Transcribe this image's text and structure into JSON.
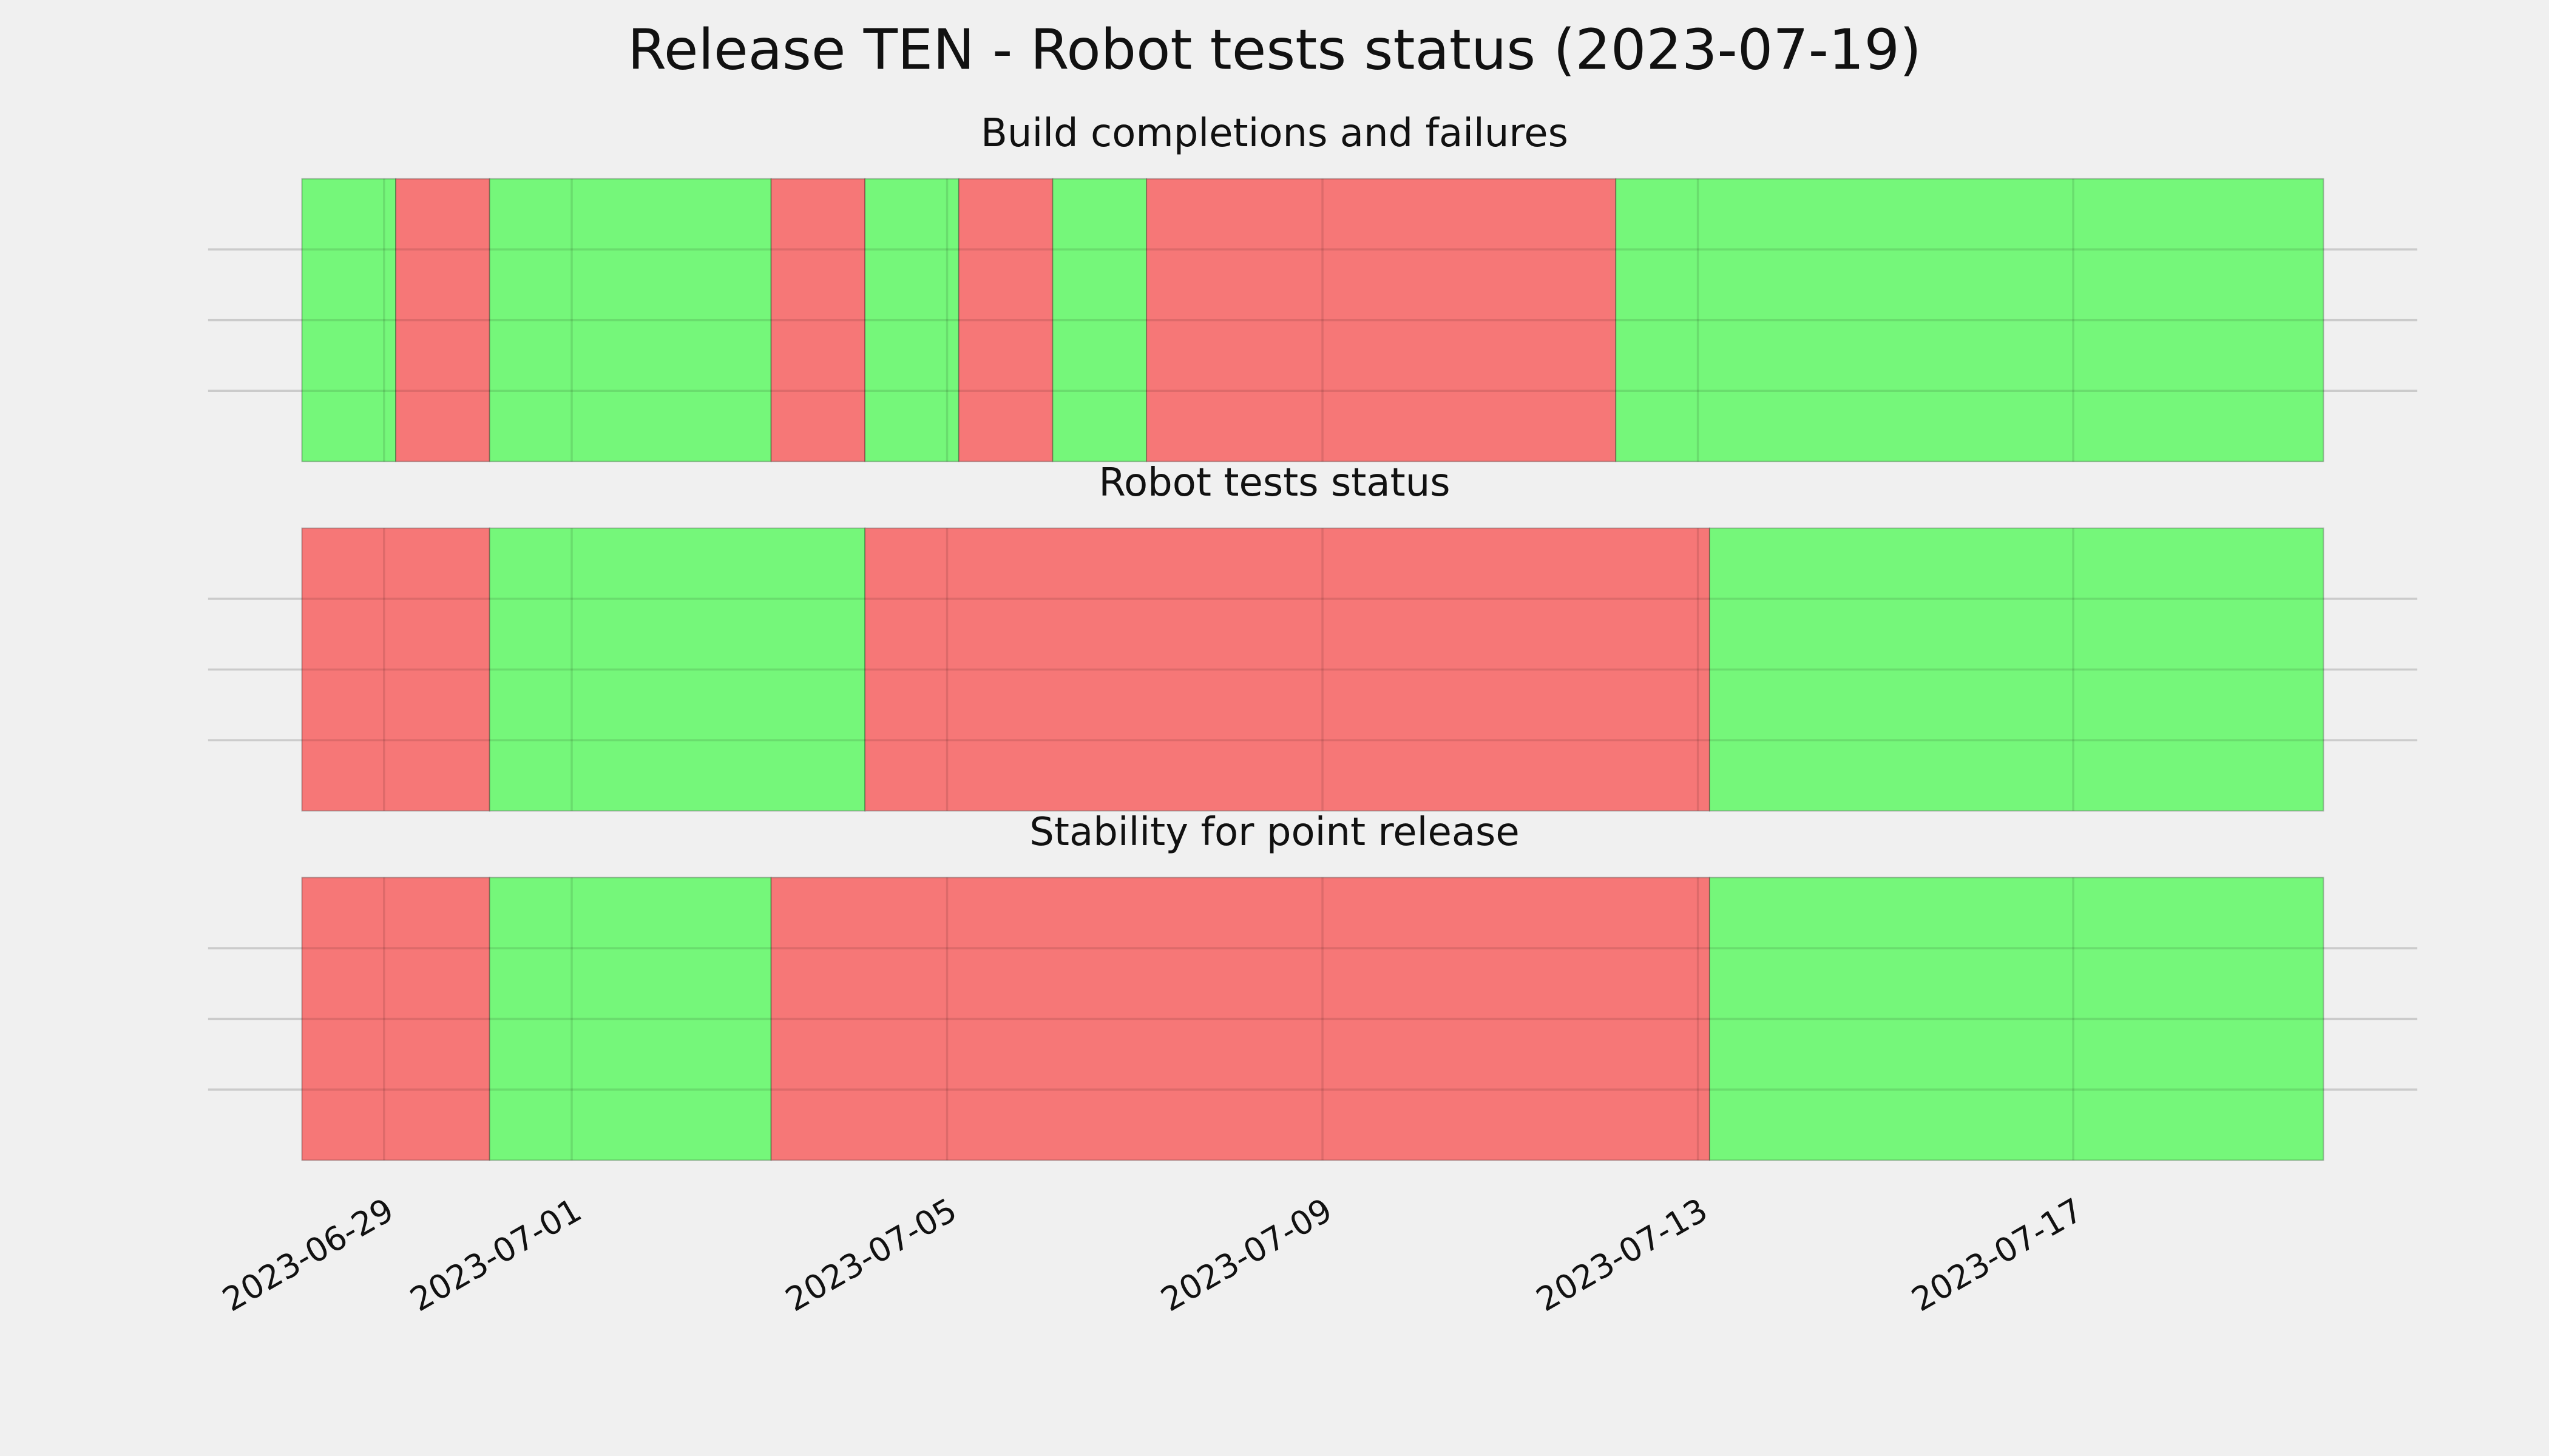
{
  "chart_data": {
    "type": "timeline",
    "title": "Release TEN - Robot tests status (2023-07-19)",
    "xlim": [
      "2023-06-27T03:00",
      "2023-07-20T16:00"
    ],
    "xticks": [
      "2023-06-29",
      "2023-07-01",
      "2023-07-05",
      "2023-07-09",
      "2023-07-13",
      "2023-07-17"
    ],
    "ylim": [
      0,
      1
    ],
    "yticks": [
      0.25,
      0.5,
      0.75
    ],
    "grid": true,
    "panels": [
      {
        "title": "Build completions and failures",
        "x": [
          "2023-06-28T03:00",
          "2023-06-29T03:00",
          "2023-06-30T03:00",
          "2023-07-03T03:00",
          "2023-07-04T03:00",
          "2023-07-05T03:00",
          "2023-07-06T03:00",
          "2023-07-07T03:00",
          "2023-07-12T03:00",
          "2023-07-19T16:00"
        ],
        "colors": [
          "#75f77a",
          "#f67777",
          "#75f77a",
          "#f67777",
          "#75f77a",
          "#f67777",
          "#75f77a",
          "#f67777",
          "#75f77a"
        ]
      },
      {
        "title": "Robot tests status",
        "x": [
          "2023-06-28T03:00",
          "2023-06-30T03:00",
          "2023-07-04T03:00",
          "2023-07-13T03:00",
          "2023-07-19T16:00"
        ],
        "colors": [
          "#f67777",
          "#75f77a",
          "#f67777",
          "#75f77a"
        ]
      },
      {
        "title": "Stability for point release",
        "x": [
          "2023-06-28T03:00",
          "2023-06-30T03:00",
          "2023-07-03T03:00",
          "2023-07-13T03:00",
          "2023-07-19T16:00"
        ],
        "colors": [
          "#f67777",
          "#75f77a",
          "#f67777",
          "#75f77a"
        ]
      }
    ]
  }
}
